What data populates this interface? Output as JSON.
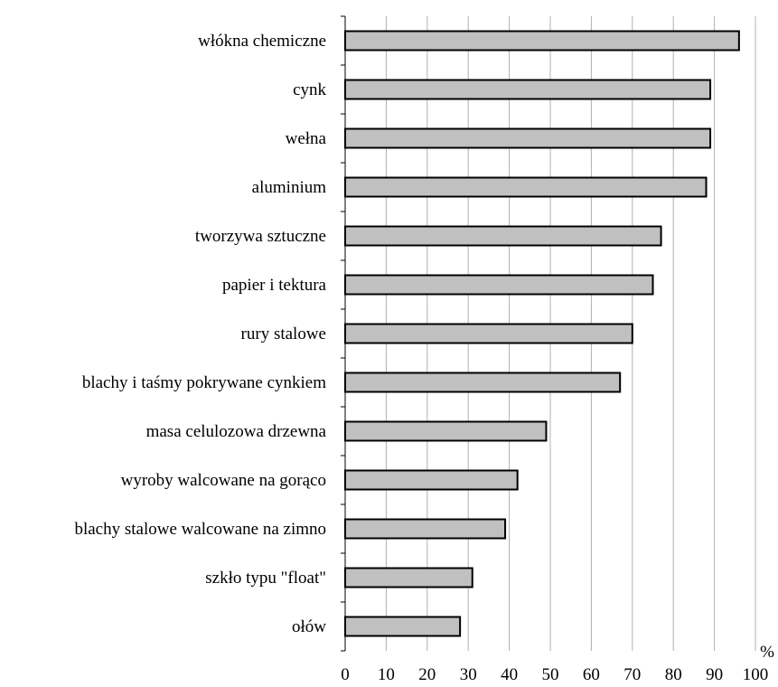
{
  "chart_data": {
    "type": "bar",
    "orientation": "horizontal",
    "categories": [
      "włókna chemiczne",
      "cynk",
      "wełna",
      "aluminium",
      "tworzywa sztuczne",
      "papier i tektura",
      "rury stalowe",
      "blachy i taśmy pokrywane cynkiem",
      "masa celulozowa drzewna",
      "wyroby walcowane na gorąco",
      "blachy stalowe walcowane na zimno",
      "szkło typu \"float\"",
      "ołów"
    ],
    "values": [
      96,
      89,
      89,
      88,
      77,
      75,
      70,
      67,
      49,
      42,
      39,
      31,
      28
    ],
    "xlim": [
      0,
      100
    ],
    "xticks": [
      0,
      10,
      20,
      30,
      40,
      50,
      60,
      70,
      80,
      90,
      100
    ],
    "unit": "%",
    "grid": "vertical",
    "bar_color": "#c0c0c0",
    "bar_edge_color": "#000000",
    "grid_color": "#b0b0b0"
  }
}
